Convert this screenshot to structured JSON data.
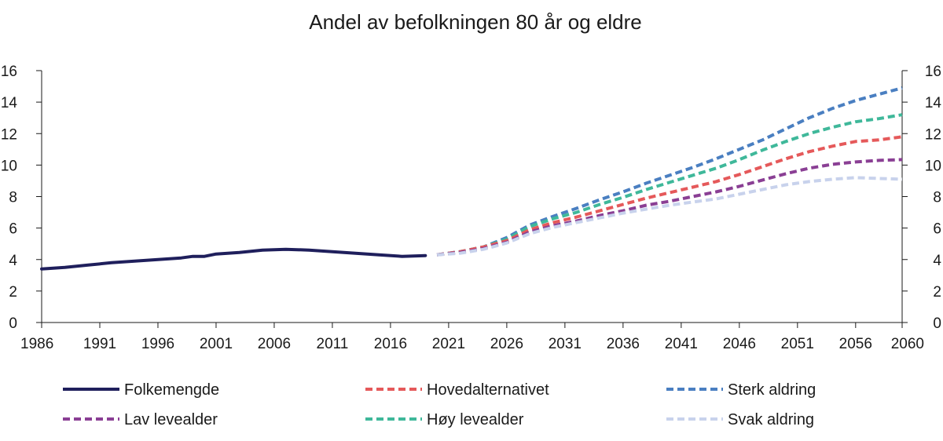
{
  "chart_data": {
    "type": "line",
    "title": "Andel av befolkningen 80 år og eldre",
    "xlabel": "",
    "ylabel": "",
    "xlim": [
      1986,
      2060
    ],
    "ylim": [
      0,
      16
    ],
    "x_ticks": [
      "1986",
      "1991",
      "1996",
      "2001",
      "2006",
      "2011",
      "2016",
      "2021",
      "2026",
      "2031",
      "2036",
      "2041",
      "2046",
      "2051",
      "2056",
      "2060"
    ],
    "y_ticks": [
      "0",
      "2",
      "4",
      "6",
      "8",
      "10",
      "12",
      "14",
      "16"
    ],
    "grid": false,
    "legend_position": "bottom",
    "series": [
      {
        "name": "Folkemengde",
        "color": "#1f1f5c",
        "dash": "solid",
        "points": [
          [
            1986,
            3.4
          ],
          [
            1988,
            3.5
          ],
          [
            1990,
            3.65
          ],
          [
            1992,
            3.8
          ],
          [
            1994,
            3.9
          ],
          [
            1996,
            4.0
          ],
          [
            1998,
            4.1
          ],
          [
            1999,
            4.2
          ],
          [
            2000,
            4.2
          ],
          [
            2001,
            4.35
          ],
          [
            2003,
            4.45
          ],
          [
            2005,
            4.6
          ],
          [
            2007,
            4.65
          ],
          [
            2009,
            4.6
          ],
          [
            2011,
            4.5
          ],
          [
            2013,
            4.4
          ],
          [
            2015,
            4.3
          ],
          [
            2017,
            4.2
          ],
          [
            2019,
            4.25
          ]
        ]
      },
      {
        "name": "Hovedalternativet",
        "color": "#e5595a",
        "dash": "dashed",
        "points": [
          [
            2020,
            4.3
          ],
          [
            2022,
            4.5
          ],
          [
            2024,
            4.8
          ],
          [
            2026,
            5.2
          ],
          [
            2028,
            5.9
          ],
          [
            2030,
            6.35
          ],
          [
            2032,
            6.7
          ],
          [
            2034,
            7.1
          ],
          [
            2036,
            7.5
          ],
          [
            2038,
            7.9
          ],
          [
            2040,
            8.25
          ],
          [
            2042,
            8.6
          ],
          [
            2044,
            8.95
          ],
          [
            2046,
            9.4
          ],
          [
            2048,
            9.9
          ],
          [
            2050,
            10.4
          ],
          [
            2052,
            10.85
          ],
          [
            2054,
            11.2
          ],
          [
            2056,
            11.5
          ],
          [
            2058,
            11.6
          ],
          [
            2060,
            11.8
          ]
        ]
      },
      {
        "name": "Sterk aldring",
        "color": "#4a7fc1",
        "dash": "dashed",
        "points": [
          [
            2020,
            4.3
          ],
          [
            2022,
            4.5
          ],
          [
            2024,
            4.8
          ],
          [
            2026,
            5.4
          ],
          [
            2028,
            6.2
          ],
          [
            2030,
            6.75
          ],
          [
            2032,
            7.25
          ],
          [
            2034,
            7.8
          ],
          [
            2036,
            8.3
          ],
          [
            2038,
            8.85
          ],
          [
            2040,
            9.35
          ],
          [
            2042,
            9.85
          ],
          [
            2044,
            10.4
          ],
          [
            2046,
            11.0
          ],
          [
            2048,
            11.6
          ],
          [
            2050,
            12.3
          ],
          [
            2052,
            13.0
          ],
          [
            2054,
            13.6
          ],
          [
            2056,
            14.1
          ],
          [
            2058,
            14.5
          ],
          [
            2060,
            14.9
          ]
        ]
      },
      {
        "name": "Lav levealder",
        "color": "#8a3f94",
        "dash": "dashed",
        "points": [
          [
            2020,
            4.3
          ],
          [
            2022,
            4.45
          ],
          [
            2024,
            4.7
          ],
          [
            2026,
            5.1
          ],
          [
            2028,
            5.75
          ],
          [
            2030,
            6.15
          ],
          [
            2032,
            6.45
          ],
          [
            2034,
            6.8
          ],
          [
            2036,
            7.1
          ],
          [
            2038,
            7.45
          ],
          [
            2040,
            7.7
          ],
          [
            2042,
            8.0
          ],
          [
            2044,
            8.3
          ],
          [
            2046,
            8.65
          ],
          [
            2048,
            9.05
          ],
          [
            2050,
            9.45
          ],
          [
            2052,
            9.8
          ],
          [
            2054,
            10.05
          ],
          [
            2056,
            10.2
          ],
          [
            2058,
            10.3
          ],
          [
            2060,
            10.35
          ]
        ]
      },
      {
        "name": "Høy levealder",
        "color": "#3fb89a",
        "dash": "dashed",
        "points": [
          [
            2020,
            4.3
          ],
          [
            2022,
            4.5
          ],
          [
            2024,
            4.8
          ],
          [
            2026,
            5.3
          ],
          [
            2028,
            6.1
          ],
          [
            2030,
            6.6
          ],
          [
            2032,
            7.0
          ],
          [
            2034,
            7.5
          ],
          [
            2036,
            7.95
          ],
          [
            2038,
            8.45
          ],
          [
            2040,
            8.9
          ],
          [
            2042,
            9.35
          ],
          [
            2044,
            9.8
          ],
          [
            2046,
            10.35
          ],
          [
            2048,
            10.95
          ],
          [
            2050,
            11.5
          ],
          [
            2052,
            12.0
          ],
          [
            2054,
            12.4
          ],
          [
            2056,
            12.75
          ],
          [
            2058,
            12.95
          ],
          [
            2060,
            13.2
          ]
        ]
      },
      {
        "name": "Svak aldring",
        "color": "#c8d2ec",
        "dash": "dashed",
        "points": [
          [
            2020,
            4.3
          ],
          [
            2022,
            4.4
          ],
          [
            2024,
            4.65
          ],
          [
            2026,
            5.05
          ],
          [
            2028,
            5.65
          ],
          [
            2030,
            6.05
          ],
          [
            2032,
            6.35
          ],
          [
            2034,
            6.65
          ],
          [
            2036,
            6.95
          ],
          [
            2038,
            7.2
          ],
          [
            2040,
            7.45
          ],
          [
            2042,
            7.65
          ],
          [
            2044,
            7.85
          ],
          [
            2046,
            8.15
          ],
          [
            2048,
            8.45
          ],
          [
            2050,
            8.75
          ],
          [
            2052,
            8.95
          ],
          [
            2054,
            9.1
          ],
          [
            2056,
            9.2
          ],
          [
            2058,
            9.15
          ],
          [
            2060,
            9.1
          ]
        ]
      }
    ]
  }
}
